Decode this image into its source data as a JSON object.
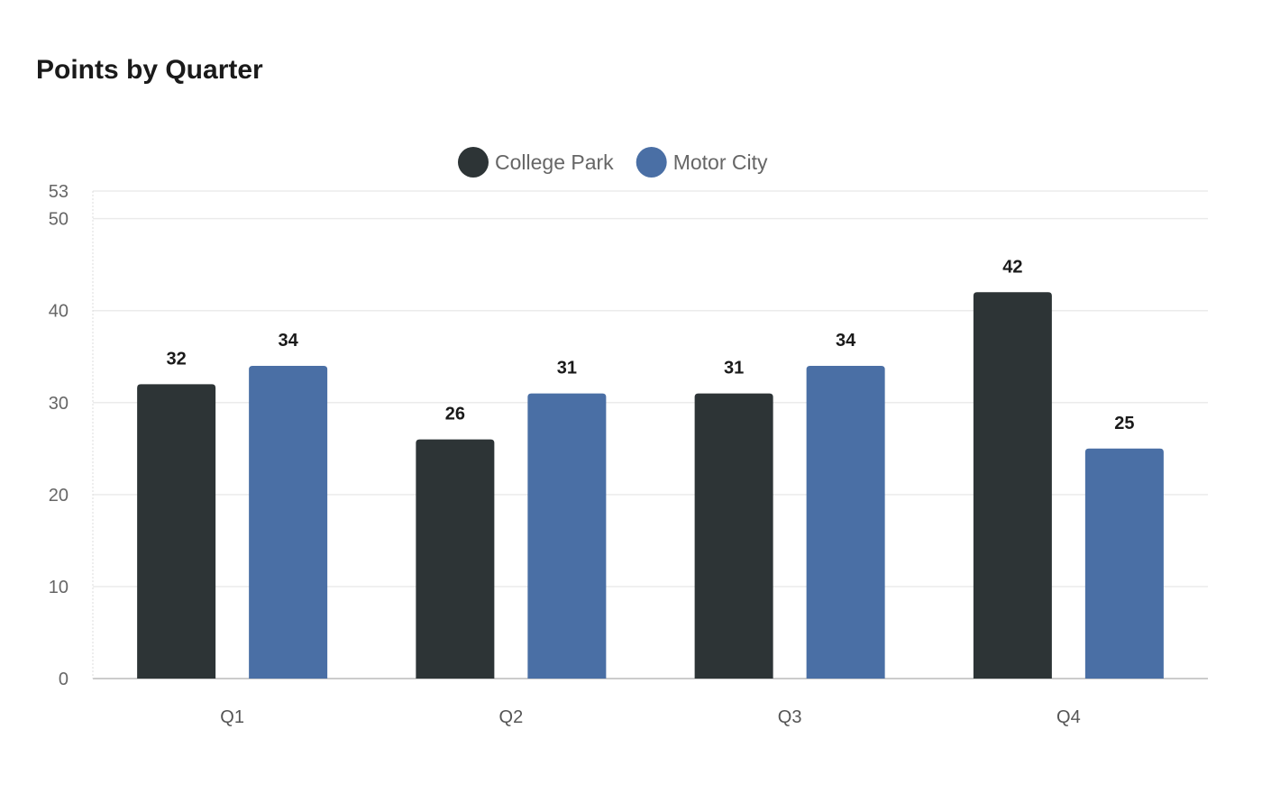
{
  "chart_data": {
    "type": "bar",
    "title": "Points by Quarter",
    "categories": [
      "Q1",
      "Q2",
      "Q3",
      "Q4"
    ],
    "series": [
      {
        "name": "College Park",
        "color": "#2d3436",
        "values": [
          32,
          26,
          31,
          42
        ]
      },
      {
        "name": "Motor City",
        "color": "#4a6fa5",
        "values": [
          34,
          31,
          34,
          25
        ]
      }
    ],
    "xlabel": "",
    "ylabel": "",
    "ylim": [
      0,
      53
    ],
    "yticks": [
      0,
      10,
      20,
      30,
      40,
      50,
      53
    ],
    "grid": true,
    "legend": "top-center"
  }
}
